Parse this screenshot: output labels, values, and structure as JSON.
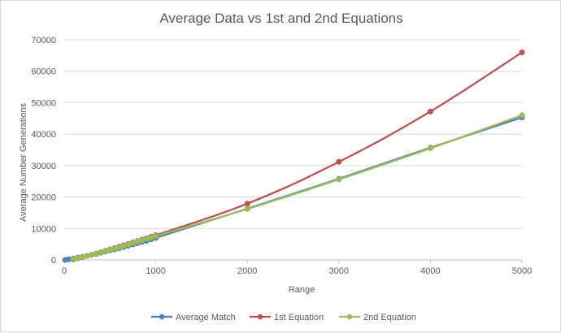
{
  "chart_data": {
    "type": "line",
    "title": "Average Data vs 1st and 2nd Equations",
    "xlabel": "Range",
    "ylabel": "Average Number Generations",
    "xlim": [
      0,
      5000
    ],
    "ylim": [
      0,
      70000
    ],
    "x_ticks": [
      "0",
      "1000",
      "2000",
      "3000",
      "4000",
      "5000"
    ],
    "y_ticks": [
      "0",
      "10000",
      "20000",
      "30000",
      "40000",
      "50000",
      "60000",
      "70000"
    ],
    "grid": "horizontal",
    "legend_position": "bottom",
    "series": [
      {
        "name": "Average Match",
        "color": "#4f81bd",
        "x": [
          10,
          50,
          100,
          150,
          200,
          250,
          300,
          350,
          400,
          450,
          500,
          550,
          600,
          650,
          700,
          750,
          800,
          850,
          900,
          950,
          1000,
          2000,
          3000,
          4000,
          5000
        ],
        "y": [
          0,
          200,
          450,
          750,
          1000,
          1300,
          1600,
          1900,
          2300,
          2650,
          3000,
          3350,
          3700,
          4100,
          4500,
          4900,
          5300,
          5700,
          6100,
          6550,
          7000,
          16300,
          25800,
          35700,
          45300
        ]
      },
      {
        "name": "1st Equation",
        "color": "#c0504d",
        "x": [
          100,
          150,
          200,
          250,
          300,
          350,
          400,
          450,
          500,
          550,
          600,
          650,
          700,
          750,
          800,
          850,
          900,
          950,
          1000,
          2000,
          3000,
          4000,
          5000
        ],
        "y": [
          150,
          500,
          850,
          1250,
          1650,
          2050,
          2450,
          2900,
          3350,
          3750,
          4200,
          4650,
          5100,
          5550,
          6000,
          6450,
          6900,
          7400,
          7850,
          17900,
          31200,
          47200,
          66000
        ]
      },
      {
        "name": "2nd Equation",
        "color": "#9bbb59",
        "x": [
          100,
          150,
          200,
          250,
          300,
          350,
          400,
          450,
          500,
          550,
          600,
          650,
          700,
          750,
          800,
          850,
          900,
          950,
          1000,
          2000,
          3000,
          4000,
          5000
        ],
        "y": [
          300,
          600,
          950,
          1300,
          1650,
          2050,
          2450,
          2800,
          3200,
          3600,
          4000,
          4450,
          4900,
          5350,
          5800,
          6250,
          6700,
          7150,
          7600,
          16200,
          25600,
          35500,
          46000
        ]
      }
    ]
  }
}
